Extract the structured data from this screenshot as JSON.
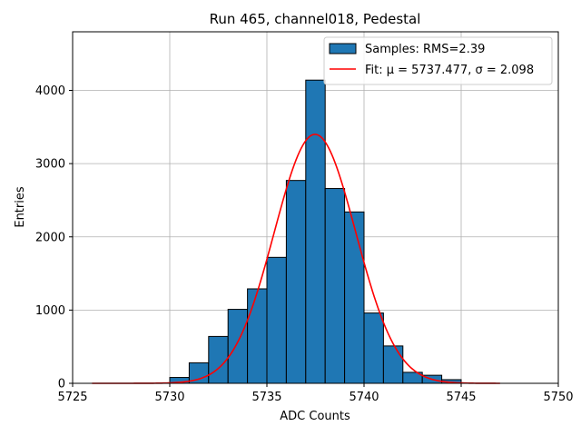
{
  "chart_data": {
    "type": "bar",
    "title": "Run 465, channel018, Pedestal",
    "xlabel": "ADC Counts",
    "ylabel": "Entries",
    "xlim": [
      5725,
      5750
    ],
    "ylim": [
      0,
      4800
    ],
    "xticks": [
      5725,
      5730,
      5735,
      5740,
      5745,
      5750
    ],
    "yticks": [
      0,
      1000,
      2000,
      3000,
      4000
    ],
    "grid": true,
    "legend_position": "top-right",
    "histogram": {
      "name": "Samples: RMS=2.39",
      "color": "#1f77b4",
      "edge_color": "#000000",
      "bin_edges": [
        5730,
        5731,
        5732,
        5733,
        5734,
        5735,
        5736,
        5737,
        5738,
        5739,
        5740,
        5741,
        5742,
        5743,
        5744,
        5745
      ],
      "counts": [
        80,
        280,
        640,
        1010,
        1290,
        1720,
        2770,
        4140,
        2660,
        2340,
        960,
        510,
        150,
        110,
        50
      ]
    },
    "fit": {
      "name": "Fit: μ = 5737.477, σ = 2.098",
      "color": "#ff0000",
      "mu": 5737.477,
      "sigma": 2.098,
      "amplitude": 3400,
      "x_range": [
        5726,
        5747
      ]
    }
  }
}
